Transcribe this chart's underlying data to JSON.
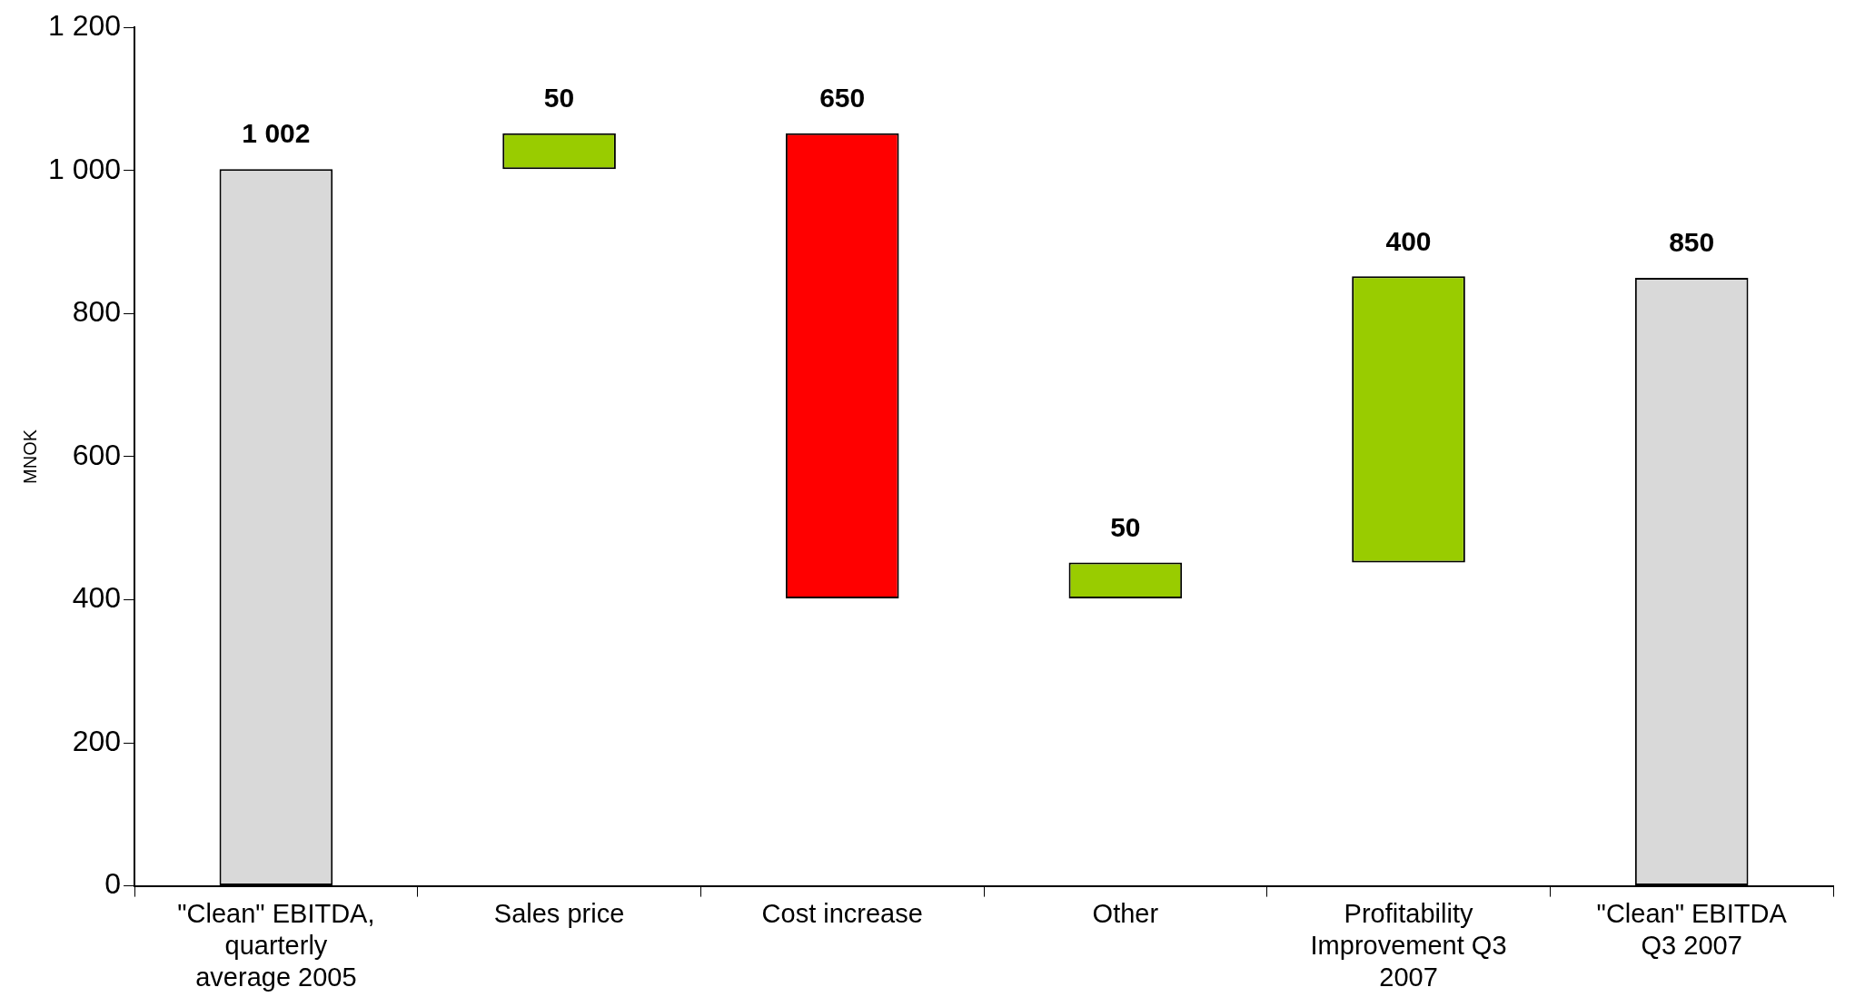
{
  "chart_data": {
    "type": "bar",
    "ylabel": "MNOK",
    "categories": [
      "\"Clean\" EBITDA, quarterly average 2005",
      "Sales price",
      "Cost increase",
      "Other",
      "Profitability Improvement Q3 2007",
      "\"Clean\" EBITDA Q3 2007"
    ],
    "base": [
      0,
      1002,
      1052,
      402,
      452,
      0
    ],
    "values": [
      1002,
      50,
      -650,
      50,
      400,
      850
    ],
    "value_labels": [
      "1 002",
      "50",
      "650",
      "50",
      "400",
      "850"
    ],
    "colors": [
      "#d9d9d9",
      "#99cc00",
      "#ff0000",
      "#99cc00",
      "#99cc00",
      "#d9d9d9"
    ],
    "ylim": [
      0,
      1200
    ],
    "yticks": [
      0,
      200,
      400,
      600,
      800,
      {
        "value": 1000,
        "label": "1 000"
      },
      {
        "value": 1200,
        "label": "1 200"
      }
    ],
    "grid": false,
    "legend": false
  }
}
